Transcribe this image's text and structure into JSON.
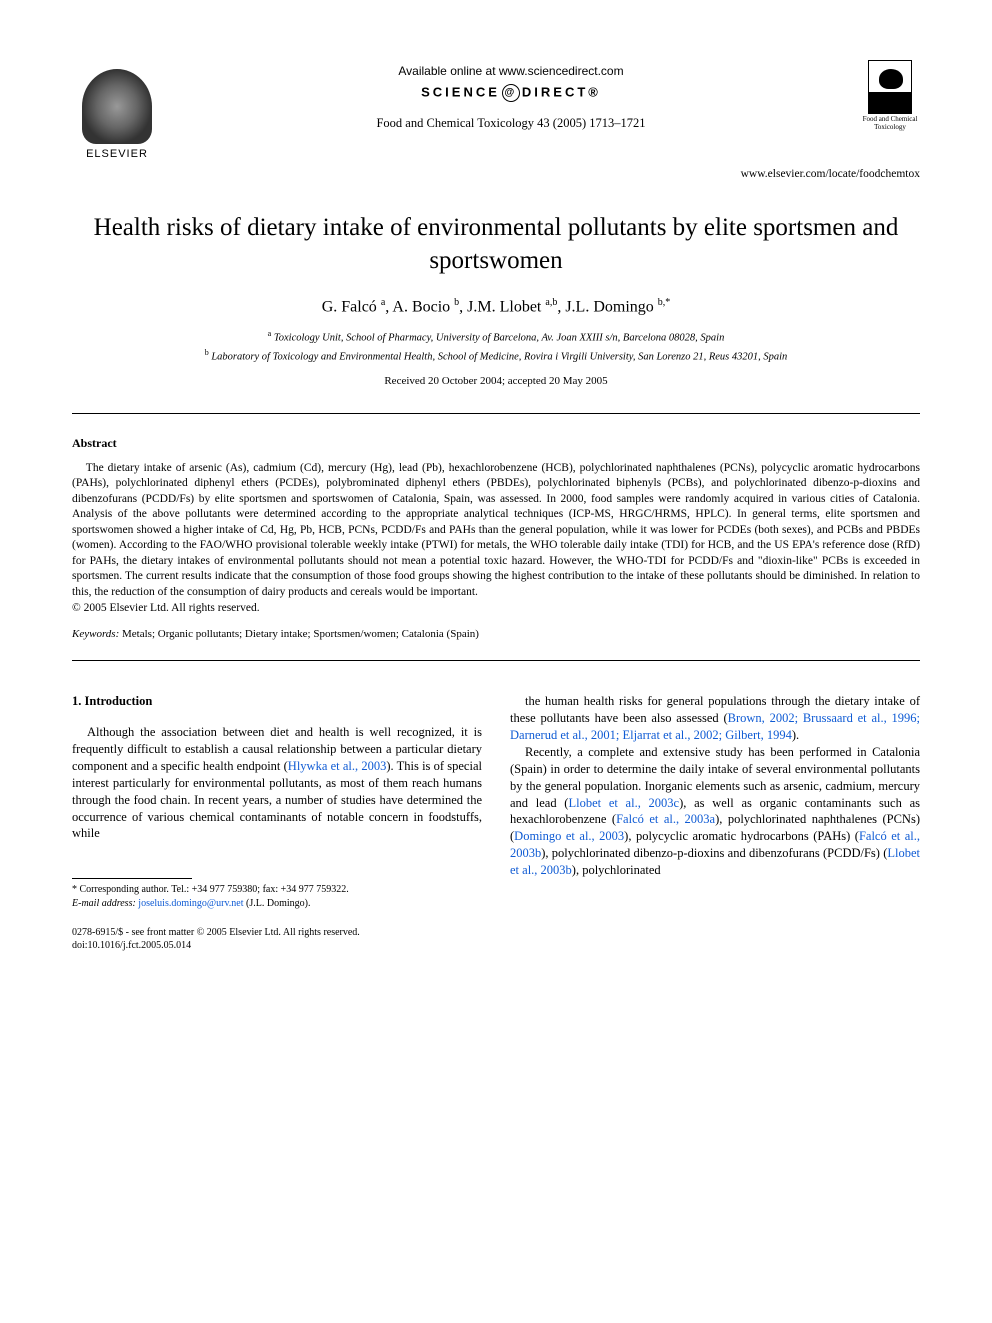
{
  "header": {
    "available_online": "Available online at www.sciencedirect.com",
    "sciencedirect_left": "SCIENCE",
    "sciencedirect_right": "DIRECT®",
    "journal_ref": "Food and Chemical Toxicology 43 (2005) 1713–1721",
    "elsevier_label": "ELSEVIER",
    "journal_logo_label": "Food and Chemical Toxicology",
    "locate_url": "www.elsevier.com/locate/foodchemtox"
  },
  "title": "Health risks of dietary intake of environmental pollutants by elite sportsmen and sportswomen",
  "authors_html": "G. Falcó <sup>a</sup>, A. Bocio <sup>b</sup>, J.M. Llobet <sup>a,b</sup>, J.L. Domingo <sup>b,</sup>*",
  "affiliations": {
    "a": "Toxicology Unit, School of Pharmacy, University of Barcelona, Av. Joan XXIII s/n, Barcelona 08028, Spain",
    "b": "Laboratory of Toxicology and Environmental Health, School of Medicine, Rovira i Virgili University, San Lorenzo 21, Reus 43201, Spain"
  },
  "received": "Received 20 October 2004; accepted 20 May 2005",
  "abstract": {
    "heading": "Abstract",
    "body": "The dietary intake of arsenic (As), cadmium (Cd), mercury (Hg), lead (Pb), hexachlorobenzene (HCB), polychlorinated naphthalenes (PCNs), polycyclic aromatic hydrocarbons (PAHs), polychlorinated diphenyl ethers (PCDEs), polybrominated diphenyl ethers (PBDEs), polychlorinated biphenyls (PCBs), and polychlorinated dibenzo-p-dioxins and dibenzofurans (PCDD/Fs) by elite sportsmen and sportswomen of Catalonia, Spain, was assessed. In 2000, food samples were randomly acquired in various cities of Catalonia. Analysis of the above pollutants were determined according to the appropriate analytical techniques (ICP-MS, HRGC/HRMS, HPLC). In general terms, elite sportsmen and sportswomen showed a higher intake of Cd, Hg, Pb, HCB, PCNs, PCDD/Fs and PAHs than the general population, while it was lower for PCDEs (both sexes), and PCBs and PBDEs (women). According to the FAO/WHO provisional tolerable weekly intake (PTWI) for metals, the WHO tolerable daily intake (TDI) for HCB, and the US EPA's reference dose (RfD) for PAHs, the dietary intakes of environmental pollutants should not mean a potential toxic hazard. However, the WHO-TDI for PCDD/Fs and \"dioxin-like\" PCBs is exceeded in sportsmen. The current results indicate that the consumption of those food groups showing the highest contribution to the intake of these pollutants should be diminished. In relation to this, the reduction of the consumption of dairy products and cereals would be important.",
    "copyright": "© 2005 Elsevier Ltd. All rights reserved."
  },
  "keywords": {
    "label": "Keywords:",
    "text": "Metals; Organic pollutants; Dietary intake; Sportsmen/women; Catalonia (Spain)"
  },
  "section1": {
    "heading": "1. Introduction",
    "col_left_p1_pre": "Although the association between diet and health is well recognized, it is frequently difficult to establish a causal relationship between a particular dietary component and a specific health endpoint (",
    "col_left_ref1": "Hlywka et al., 2003",
    "col_left_p1_post": "). This is of special interest particularly for environmental pollutants, as most of them reach humans through the food chain. In recent years, a number of studies have determined the occurrence of various chemical contaminants of notable concern in foodstuffs, while",
    "col_right_p1_pre": "the human health risks for general populations through the dietary intake of these pollutants have been also assessed (",
    "col_right_ref1": "Brown, 2002; Brussaard et al., 1996; Darnerud et al., 2001; Eljarrat et al., 2002; Gilbert, 1994",
    "col_right_p1_post": ").",
    "col_right_p2_pre": "Recently, a complete and extensive study has been performed in Catalonia (Spain) in order to determine the daily intake of several environmental pollutants by the general population. Inorganic elements such as arsenic, cadmium, mercury and lead (",
    "col_right_ref2": "Llobet et al., 2003c",
    "col_right_p2_mid1": "), as well as organic contaminants such as hexachlorobenzene (",
    "col_right_ref3": "Falcó et al., 2003a",
    "col_right_p2_mid2": "), polychlorinated naphthalenes (PCNs) (",
    "col_right_ref4": "Domingo et al., 2003",
    "col_right_p2_mid3": "), polycyclic aromatic hydrocarbons (PAHs) (",
    "col_right_ref5": "Falcó et al., 2003b",
    "col_right_p2_mid4": "), polychlorinated dibenzo-p-dioxins and dibenzofurans (PCDD/Fs) (",
    "col_right_ref6": "Llobet et al., 2003b",
    "col_right_p2_post": "), polychlorinated"
  },
  "footnote": {
    "corresponding": "Corresponding author. Tel.: +34 977 759380; fax: +34 977 759322.",
    "email_label": "E-mail address:",
    "email": "joseluis.domingo@urv.net",
    "email_who": "(J.L. Domingo)."
  },
  "bottom": {
    "issn": "0278-6915/$ - see front matter © 2005 Elsevier Ltd. All rights reserved.",
    "doi": "doi:10.1016/j.fct.2005.05.014"
  },
  "colors": {
    "link": "#0f5bd4",
    "text": "#000000",
    "background": "#ffffff"
  },
  "typography": {
    "body_font": "Times New Roman",
    "title_size_pt": 19,
    "body_size_pt": 9.5,
    "abstract_size_pt": 8.5
  }
}
